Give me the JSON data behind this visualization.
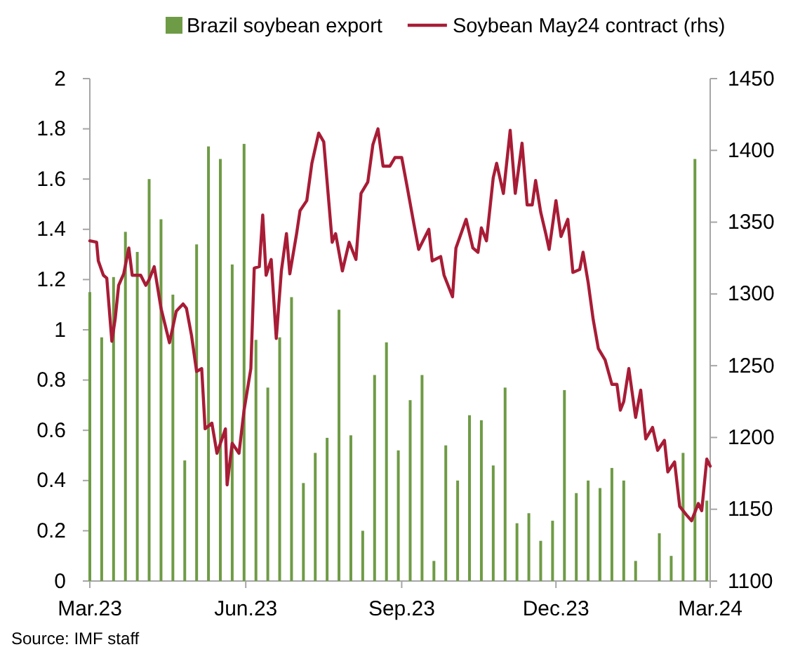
{
  "chart_data": {
    "type": "bar",
    "x": [
      "2023-03-01",
      "2023-03-08",
      "2023-03-15",
      "2023-03-22",
      "2023-03-29",
      "2023-04-05",
      "2023-04-12",
      "2023-04-19",
      "2023-04-26",
      "2023-05-03",
      "2023-05-10",
      "2023-05-17",
      "2023-05-24",
      "2023-05-31",
      "2023-06-07",
      "2023-06-14",
      "2023-06-21",
      "2023-06-28",
      "2023-07-05",
      "2023-07-12",
      "2023-07-19",
      "2023-07-26",
      "2023-08-02",
      "2023-08-09",
      "2023-08-16",
      "2023-08-23",
      "2023-08-30",
      "2023-09-06",
      "2023-09-13",
      "2023-09-20",
      "2023-09-27",
      "2023-10-04",
      "2023-10-11",
      "2023-10-18",
      "2023-10-25",
      "2023-11-01",
      "2023-11-08",
      "2023-11-15",
      "2023-11-22",
      "2023-11-29",
      "2023-12-06",
      "2023-12-13",
      "2023-12-20",
      "2023-12-27",
      "2024-01-03",
      "2024-01-10",
      "2024-01-17",
      "2024-01-24",
      "2024-01-31",
      "2024-02-07",
      "2024-02-14",
      "2024-02-21",
      "2024-02-28"
    ],
    "series": [
      {
        "name": "Brazil soybean export",
        "color": "#6e9b45",
        "values": [
          1.15,
          0.97,
          1.21,
          1.39,
          1.31,
          1.6,
          1.44,
          1.14,
          0.48,
          1.34,
          1.73,
          1.68,
          1.26,
          1.74,
          0.96,
          0.77,
          0.97,
          1.13,
          0.39,
          0.51,
          0.57,
          1.08,
          0.58,
          0.2,
          0.82,
          0.95,
          0.52,
          0.72,
          0.82,
          0.08,
          0.54,
          0.4,
          0.66,
          0.64,
          0.46,
          0.77,
          0.23,
          0.27,
          0.16,
          0.24,
          0.76,
          0.35,
          0.4,
          0.37,
          0.45,
          0.4,
          0.08,
          null,
          0.19,
          0.1,
          0.51,
          1.68,
          0.32
        ]
      },
      {
        "name": "Soybean May24 contract (rhs)",
        "type": "line",
        "axis": "y2",
        "color": "#a81c36",
        "x": [
          "2023-03-01",
          "2023-03-05",
          "2023-03-06",
          "2023-03-09",
          "2023-03-11",
          "2023-03-14",
          "2023-03-16",
          "2023-03-18",
          "2023-03-21",
          "2023-03-24",
          "2023-03-26",
          "2023-03-31",
          "2023-04-03",
          "2023-04-05",
          "2023-04-08",
          "2023-04-12",
          "2023-04-17",
          "2023-04-21",
          "2023-04-25",
          "2023-04-27",
          "2023-04-30",
          "2023-05-03",
          "2023-05-06",
          "2023-05-08",
          "2023-05-12",
          "2023-05-15",
          "2023-05-20",
          "2023-05-21",
          "2023-05-24",
          "2023-05-28",
          "2023-05-31",
          "2023-06-04",
          "2023-06-06",
          "2023-06-09",
          "2023-06-11",
          "2023-06-13",
          "2023-06-16",
          "2023-06-19",
          "2023-06-22",
          "2023-06-25",
          "2023-06-27",
          "2023-07-01",
          "2023-07-03",
          "2023-07-07",
          "2023-07-10",
          "2023-07-14",
          "2023-07-17",
          "2023-07-22",
          "2023-07-24",
          "2023-07-28",
          "2023-08-01",
          "2023-08-05",
          "2023-08-08",
          "2023-08-12",
          "2023-08-15",
          "2023-08-18",
          "2023-08-21",
          "2023-08-25",
          "2023-08-28",
          "2023-09-01",
          "2023-09-04",
          "2023-09-08",
          "2023-09-11",
          "2023-09-17",
          "2023-09-19",
          "2023-09-24",
          "2023-09-26",
          "2023-10-01",
          "2023-10-03",
          "2023-10-09",
          "2023-10-13",
          "2023-10-16",
          "2023-10-18",
          "2023-10-21",
          "2023-10-25",
          "2023-10-27",
          "2023-10-31",
          "2023-11-04",
          "2023-11-07",
          "2023-11-11",
          "2023-11-14",
          "2023-11-17",
          "2023-11-19",
          "2023-11-22",
          "2023-11-25",
          "2023-11-27",
          "2023-12-01",
          "2023-12-04",
          "2023-12-08",
          "2023-12-11",
          "2023-12-15",
          "2023-12-17",
          "2023-12-20",
          "2023-12-23",
          "2023-12-26",
          "2023-12-30",
          "2024-01-03",
          "2024-01-06",
          "2024-01-08",
          "2024-01-10",
          "2024-01-13",
          "2024-01-17",
          "2024-01-20",
          "2024-01-23",
          "2024-01-27",
          "2024-01-30",
          "2024-02-03",
          "2024-02-05",
          "2024-02-09",
          "2024-02-12",
          "2024-02-16",
          "2024-02-19",
          "2024-02-23",
          "2024-02-25",
          "2024-02-28",
          "2024-03-01"
        ],
        "values": [
          1337,
          1336,
          1323,
          1313,
          1311,
          1267,
          1283,
          1306,
          1314,
          1332,
          1313,
          1313,
          1306,
          1310,
          1319,
          1290,
          1266,
          1288,
          1293,
          1290,
          1271,
          1246,
          1248,
          1206,
          1210,
          1189,
          1206,
          1167,
          1196,
          1189,
          1219,
          1248,
          1318,
          1319,
          1355,
          1313,
          1324,
          1269,
          1316,
          1342,
          1314,
          1342,
          1358,
          1365,
          1391,
          1412,
          1406,
          1336,
          1342,
          1316,
          1336,
          1324,
          1370,
          1378,
          1404,
          1415,
          1389,
          1389,
          1395,
          1395,
          1376,
          1350,
          1331,
          1345,
          1323,
          1326,
          1313,
          1298,
          1332,
          1352,
          1332,
          1329,
          1346,
          1337,
          1381,
          1391,
          1370,
          1414,
          1370,
          1405,
          1362,
          1362,
          1379,
          1357,
          1342,
          1331,
          1365,
          1340,
          1352,
          1315,
          1317,
          1329,
          1308,
          1282,
          1262,
          1254,
          1237,
          1237,
          1219,
          1225,
          1248,
          1214,
          1233,
          1199,
          1207,
          1191,
          1198,
          1176,
          1183,
          1152,
          1146,
          1142,
          1154,
          1149,
          1185,
          1180
        ]
      }
    ],
    "xlim": [
      "2023-03-01",
      "2024-03-01"
    ],
    "xticks": [
      {
        "value": "2023-03-01",
        "label": "Mar.23"
      },
      {
        "value": "2023-06-01",
        "label": "Jun.23"
      },
      {
        "value": "2023-09-01",
        "label": "Sep.23"
      },
      {
        "value": "2023-12-01",
        "label": "Dec.23"
      },
      {
        "value": "2024-03-01",
        "label": "Mar.24"
      }
    ],
    "ylim": [
      0,
      2
    ],
    "yticks": [
      0,
      0.2,
      0.4,
      0.6,
      0.8,
      1,
      1.2,
      1.4,
      1.6,
      1.8,
      2
    ],
    "y2lim": [
      1100,
      1450
    ],
    "y2ticks": [
      1100,
      1150,
      1200,
      1250,
      1300,
      1350,
      1400,
      1450
    ],
    "legend": "top",
    "grid": false,
    "annotations": [
      "Source: IMF staff"
    ]
  }
}
